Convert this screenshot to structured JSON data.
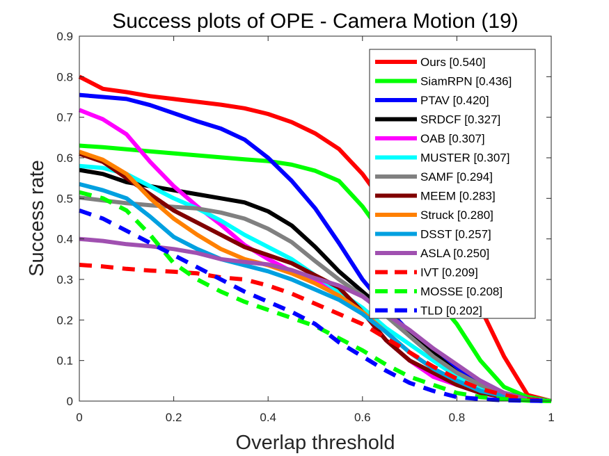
{
  "chart_data": {
    "type": "line",
    "title": "Success plots of OPE - Camera Motion (19)",
    "xlabel": "Overlap threshold",
    "ylabel": "Success rate",
    "xlim": [
      0,
      1
    ],
    "ylim": [
      0,
      0.9
    ],
    "xticks": [
      0,
      0.2,
      0.4,
      0.6,
      0.8,
      1
    ],
    "xtick_labels": [
      "0",
      "0.2",
      "0.4",
      "0.6",
      "0.8",
      "1"
    ],
    "yticks": [
      0,
      0.1,
      0.2,
      0.3,
      0.4,
      0.5,
      0.6,
      0.7,
      0.8,
      0.9
    ],
    "ytick_labels": [
      "0",
      "0.1",
      "0.2",
      "0.3",
      "0.4",
      "0.5",
      "0.6",
      "0.7",
      "0.8",
      "0.9"
    ],
    "grid": false,
    "legend_position": "top-right",
    "x": [
      0,
      0.05,
      0.1,
      0.15,
      0.2,
      0.25,
      0.3,
      0.35,
      0.4,
      0.45,
      0.5,
      0.55,
      0.6,
      0.65,
      0.7,
      0.75,
      0.8,
      0.85,
      0.9,
      0.95,
      1
    ],
    "series": [
      {
        "name": "Ours [0.540]",
        "color": "#ff0000",
        "dash": "solid",
        "values": [
          0.8,
          0.77,
          0.762,
          0.752,
          0.745,
          0.738,
          0.731,
          0.722,
          0.708,
          0.688,
          0.66,
          0.622,
          0.56,
          0.48,
          0.4,
          0.34,
          0.29,
          0.23,
          0.11,
          0.015,
          0
        ]
      },
      {
        "name": "SiamRPN [0.436]",
        "color": "#00ff00",
        "dash": "solid",
        "values": [
          0.63,
          0.626,
          0.621,
          0.616,
          0.611,
          0.606,
          0.601,
          0.596,
          0.592,
          0.583,
          0.568,
          0.543,
          0.48,
          0.4,
          0.33,
          0.26,
          0.19,
          0.1,
          0.035,
          0.01,
          0
        ]
      },
      {
        "name": "PTAV [0.420]",
        "color": "#0000ff",
        "dash": "solid",
        "values": [
          0.755,
          0.75,
          0.745,
          0.73,
          0.71,
          0.69,
          0.672,
          0.645,
          0.6,
          0.543,
          0.475,
          0.39,
          0.3,
          0.23,
          0.17,
          0.12,
          0.08,
          0.05,
          0.02,
          0.005,
          0
        ]
      },
      {
        "name": "SRDCF [0.327]",
        "color": "#000000",
        "dash": "solid",
        "values": [
          0.57,
          0.56,
          0.54,
          0.53,
          0.52,
          0.51,
          0.5,
          0.49,
          0.468,
          0.433,
          0.38,
          0.32,
          0.27,
          0.22,
          0.17,
          0.12,
          0.07,
          0.04,
          0.02,
          0.005,
          0
        ]
      },
      {
        "name": "OAB [0.307]",
        "color": "#ff00ff",
        "dash": "solid",
        "values": [
          0.718,
          0.695,
          0.658,
          0.59,
          0.53,
          0.48,
          0.435,
          0.385,
          0.35,
          0.32,
          0.295,
          0.27,
          0.22,
          0.15,
          0.1,
          0.06,
          0.04,
          0.02,
          0.01,
          0.003,
          0
        ]
      },
      {
        "name": "MUSTER [0.307]",
        "color": "#00ffff",
        "dash": "solid",
        "values": [
          0.58,
          0.575,
          0.56,
          0.53,
          0.5,
          0.475,
          0.445,
          0.41,
          0.38,
          0.35,
          0.31,
          0.27,
          0.23,
          0.18,
          0.14,
          0.1,
          0.06,
          0.03,
          0.015,
          0.004,
          0
        ]
      },
      {
        "name": "SAMF [0.294]",
        "color": "#808080",
        "dash": "solid",
        "values": [
          0.502,
          0.495,
          0.488,
          0.483,
          0.479,
          0.475,
          0.465,
          0.45,
          0.425,
          0.392,
          0.345,
          0.3,
          0.26,
          0.21,
          0.16,
          0.11,
          0.07,
          0.04,
          0.015,
          0.004,
          0
        ]
      },
      {
        "name": "MEEM [0.283]",
        "color": "#800000",
        "dash": "solid",
        "values": [
          0.61,
          0.59,
          0.55,
          0.51,
          0.47,
          0.44,
          0.41,
          0.38,
          0.36,
          0.34,
          0.31,
          0.28,
          0.22,
          0.15,
          0.1,
          0.07,
          0.04,
          0.02,
          0.01,
          0.003,
          0
        ]
      },
      {
        "name": "Struck [0.280]",
        "color": "#ff8000",
        "dash": "solid",
        "values": [
          0.615,
          0.595,
          0.56,
          0.5,
          0.45,
          0.41,
          0.375,
          0.35,
          0.335,
          0.315,
          0.29,
          0.26,
          0.22,
          0.17,
          0.12,
          0.08,
          0.05,
          0.025,
          0.012,
          0.003,
          0
        ]
      },
      {
        "name": "DSST [0.257]",
        "color": "#00a0e0",
        "dash": "solid",
        "values": [
          0.535,
          0.52,
          0.5,
          0.455,
          0.405,
          0.375,
          0.35,
          0.335,
          0.32,
          0.3,
          0.275,
          0.25,
          0.215,
          0.17,
          0.12,
          0.08,
          0.05,
          0.025,
          0.012,
          0.003,
          0
        ]
      },
      {
        "name": "ASLA [0.250]",
        "color": "#a050b0",
        "dash": "solid",
        "values": [
          0.4,
          0.395,
          0.387,
          0.382,
          0.375,
          0.365,
          0.35,
          0.343,
          0.337,
          0.323,
          0.303,
          0.285,
          0.258,
          0.215,
          0.175,
          0.13,
          0.09,
          0.05,
          0.02,
          0.005,
          0
        ]
      },
      {
        "name": "IVT [0.209]",
        "color": "#ff0000",
        "dash": "dashed",
        "values": [
          0.336,
          0.332,
          0.326,
          0.322,
          0.319,
          0.315,
          0.305,
          0.3,
          0.285,
          0.265,
          0.24,
          0.215,
          0.19,
          0.155,
          0.12,
          0.085,
          0.055,
          0.03,
          0.015,
          0.004,
          0
        ]
      },
      {
        "name": "MOSSE [0.208]",
        "color": "#00ff00",
        "dash": "dashed",
        "values": [
          0.515,
          0.5,
          0.47,
          0.41,
          0.34,
          0.3,
          0.27,
          0.245,
          0.225,
          0.205,
          0.185,
          0.155,
          0.125,
          0.09,
          0.06,
          0.04,
          0.02,
          0.01,
          0.005,
          0.001,
          0
        ]
      },
      {
        "name": "TLD [0.202]",
        "color": "#0000ff",
        "dash": "dashed",
        "values": [
          0.47,
          0.45,
          0.42,
          0.39,
          0.36,
          0.33,
          0.3,
          0.27,
          0.245,
          0.22,
          0.19,
          0.145,
          0.11,
          0.075,
          0.045,
          0.025,
          0.01,
          0.005,
          0.002,
          0.001,
          0
        ]
      }
    ]
  }
}
